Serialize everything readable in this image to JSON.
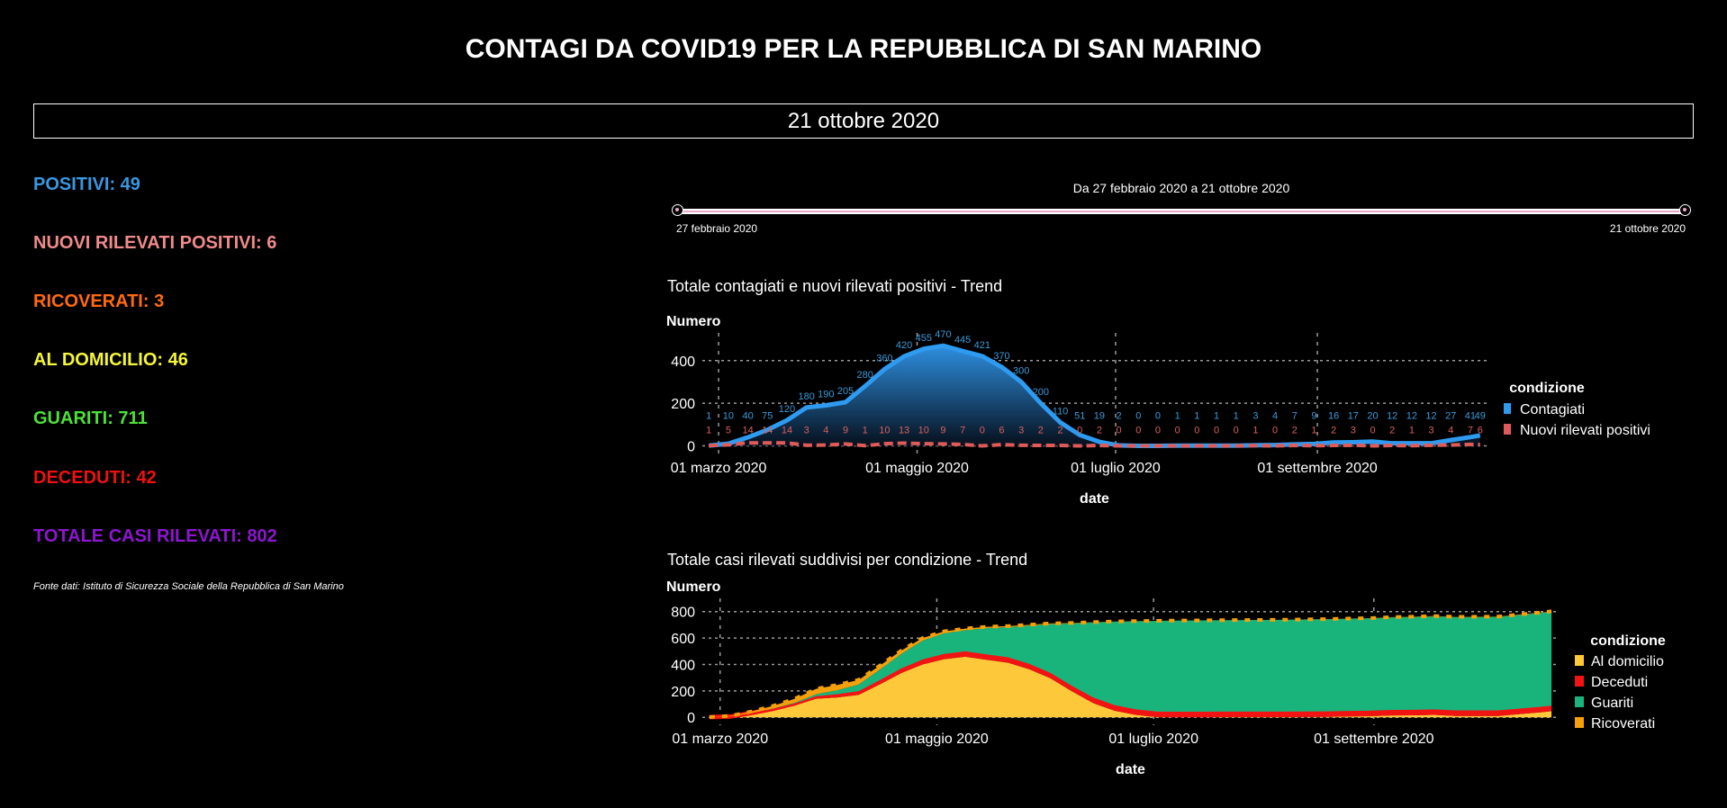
{
  "header": {
    "title": "CONTAGI DA COVID19 PER LA REPUBBLICA DI SAN MARINO",
    "date": "21 ottobre 2020"
  },
  "stats": [
    {
      "label": "POSITIVI: 49",
      "color": "#3a97e0"
    },
    {
      "label": "NUOVI RILEVATI POSITIVI: 6",
      "color": "#f08a8a"
    },
    {
      "label": "RICOVERATI: 3",
      "color": "#ff6a10"
    },
    {
      "label": "AL DOMICILIO: 46",
      "color": "#f5f53a"
    },
    {
      "label": "GUARITI: 711",
      "color": "#4ee03a"
    },
    {
      "label": "DECEDUTI: 42",
      "color": "#ee1111"
    },
    {
      "label": "TOTALE CASI RILEVATI: 802",
      "color": "#8c16d0"
    }
  ],
  "source": "Fonte dati: Istituto di Sicurezza Sociale della Repubblica di San Marino",
  "range_slider": {
    "label": "Da 27 febbraio 2020 a 21 ottobre 2020",
    "start": "27 febbraio 2020",
    "end": "21 ottobre 2020"
  },
  "chart_data": [
    {
      "type": "line",
      "title": "Totale contagiati e nuovi rilevati positivi - Trend",
      "xlabel": "date",
      "ylabel": "Numero",
      "x_ticks": [
        {
          "date": "2020-03-01",
          "label": "01 marzo 2020"
        },
        {
          "date": "2020-05-01",
          "label": "01 maggio 2020"
        },
        {
          "date": "2020-07-01",
          "label": "01 luglio 2020"
        },
        {
          "date": "2020-09-01",
          "label": "01 settembre 2020"
        }
      ],
      "y_ticks": [
        0,
        200,
        400
      ],
      "xlim": [
        "2020-02-25",
        "2020-10-23"
      ],
      "ylim": [
        -40,
        530
      ],
      "grid": true,
      "legend": {
        "title": "condizione",
        "placement": "right"
      },
      "dates": [
        "2020-02-27",
        "2020-03-04",
        "2020-03-10",
        "2020-03-16",
        "2020-03-22",
        "2020-03-28",
        "2020-04-03",
        "2020-04-09",
        "2020-04-15",
        "2020-04-21",
        "2020-04-27",
        "2020-05-03",
        "2020-05-09",
        "2020-05-15",
        "2020-05-21",
        "2020-05-27",
        "2020-06-02",
        "2020-06-08",
        "2020-06-14",
        "2020-06-20",
        "2020-06-26",
        "2020-07-02",
        "2020-07-08",
        "2020-07-14",
        "2020-07-20",
        "2020-07-26",
        "2020-08-01",
        "2020-08-07",
        "2020-08-13",
        "2020-08-19",
        "2020-08-25",
        "2020-08-31",
        "2020-09-06",
        "2020-09-12",
        "2020-09-18",
        "2020-09-24",
        "2020-09-30",
        "2020-10-06",
        "2020-10-12",
        "2020-10-18",
        "2020-10-21"
      ],
      "series": [
        {
          "name": "Contagiati",
          "color": "#2e9bf0",
          "values": [
            1,
            10,
            40,
            75,
            120,
            180,
            190,
            205,
            280,
            360,
            420,
            455,
            470,
            445,
            421,
            370,
            300,
            200,
            110,
            51,
            19,
            2,
            0,
            0,
            1,
            1,
            1,
            1,
            3,
            4,
            7,
            9,
            16,
            17,
            20,
            12,
            12,
            12,
            27,
            41,
            49
          ]
        },
        {
          "name": "Nuovi rilevati positivi",
          "color": "#e05a5a",
          "values": [
            1,
            5,
            14,
            14,
            14,
            3,
            4,
            9,
            1,
            10,
            13,
            10,
            9,
            7,
            0,
            6,
            3,
            2,
            2,
            0,
            2,
            0,
            0,
            0,
            0,
            0,
            0,
            0,
            1,
            0,
            2,
            1,
            2,
            3,
            0,
            2,
            1,
            3,
            4,
            7,
            6
          ]
        }
      ]
    },
    {
      "type": "area",
      "stacked": true,
      "title": "Totale casi rilevati suddivisi per condizione - Trend",
      "xlabel": "date",
      "ylabel": "Numero",
      "x_ticks": [
        {
          "date": "2020-03-01",
          "label": "01 marzo 2020"
        },
        {
          "date": "2020-05-01",
          "label": "01 maggio 2020"
        },
        {
          "date": "2020-07-01",
          "label": "01 luglio 2020"
        },
        {
          "date": "2020-09-01",
          "label": "01 settembre 2020"
        }
      ],
      "y_ticks": [
        0,
        200,
        400,
        600,
        800
      ],
      "xlim": [
        "2020-02-25",
        "2020-10-23"
      ],
      "ylim": [
        -60,
        900
      ],
      "grid": true,
      "legend": {
        "title": "condizione",
        "placement": "right"
      },
      "dates": [
        "2020-02-27",
        "2020-03-04",
        "2020-03-10",
        "2020-03-16",
        "2020-03-22",
        "2020-03-28",
        "2020-04-03",
        "2020-04-09",
        "2020-04-15",
        "2020-04-21",
        "2020-04-27",
        "2020-05-03",
        "2020-05-09",
        "2020-05-15",
        "2020-05-21",
        "2020-05-27",
        "2020-06-02",
        "2020-06-08",
        "2020-06-14",
        "2020-06-20",
        "2020-06-26",
        "2020-07-02",
        "2020-07-08",
        "2020-07-14",
        "2020-07-20",
        "2020-07-26",
        "2020-08-01",
        "2020-08-07",
        "2020-08-13",
        "2020-08-19",
        "2020-08-25",
        "2020-08-31",
        "2020-09-06",
        "2020-09-12",
        "2020-09-18",
        "2020-09-24",
        "2020-09-30",
        "2020-10-06",
        "2020-10-12",
        "2020-10-18",
        "2020-10-21"
      ],
      "series": [
        {
          "name": "Al domicilio",
          "color": "#fdc93a",
          "values": [
            1,
            5,
            28,
            55,
            90,
            140,
            150,
            170,
            250,
            335,
            400,
            440,
            458,
            435,
            413,
            364,
            295,
            197,
            108,
            50,
            18,
            1,
            0,
            0,
            1,
            1,
            1,
            1,
            2,
            3,
            6,
            8,
            14,
            15,
            18,
            10,
            10,
            10,
            24,
            38,
            46
          ]
        },
        {
          "name": "Deceduti",
          "color": "#f21313",
          "values": [
            0,
            1,
            5,
            10,
            15,
            20,
            25,
            28,
            32,
            35,
            38,
            40,
            41,
            41,
            41,
            41,
            41,
            41,
            42,
            42,
            42,
            42,
            42,
            42,
            42,
            42,
            42,
            42,
            42,
            42,
            42,
            42,
            42,
            42,
            42,
            42,
            42,
            42,
            42,
            42,
            42
          ]
        },
        {
          "name": "Guariti",
          "color": "#19b47c",
          "values": [
            0,
            0,
            0,
            2,
            5,
            15,
            30,
            50,
            80,
            110,
            142,
            155,
            160,
            199,
            228,
            289,
            369,
            473,
            568,
            632,
            667,
            686,
            690,
            691,
            692,
            693,
            694,
            695,
            696,
            697,
            698,
            699,
            700,
            702,
            704,
            706,
            707,
            708,
            709,
            710,
            711
          ]
        },
        {
          "name": "Ricoverati",
          "color": "#f5a00a",
          "values": [
            0,
            5,
            12,
            20,
            30,
            40,
            40,
            35,
            30,
            25,
            20,
            15,
            12,
            10,
            8,
            6,
            5,
            3,
            2,
            1,
            1,
            1,
            0,
            0,
            0,
            0,
            0,
            0,
            1,
            1,
            1,
            1,
            2,
            2,
            2,
            2,
            2,
            2,
            3,
            3,
            3
          ]
        }
      ]
    }
  ]
}
